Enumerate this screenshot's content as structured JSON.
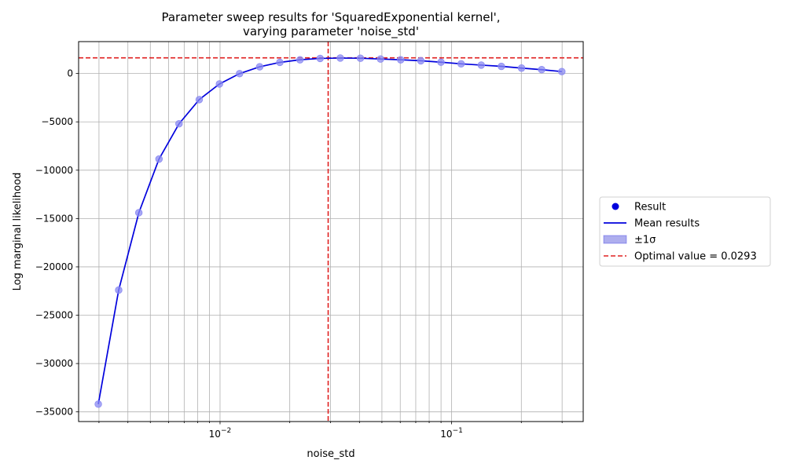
{
  "chart_data": {
    "type": "line",
    "title_line1": "Parameter sweep results for 'SquaredExponential kernel',",
    "title_line2": "varying parameter 'noise_std'",
    "xlabel": "noise_std",
    "ylabel": "Log marginal likelihood",
    "xscale": "log",
    "xlim": [
      0.00245,
      0.37
    ],
    "ylim": [
      -36000,
      3300
    ],
    "grid": true,
    "x": [
      0.00298,
      0.00365,
      0.00446,
      0.00545,
      0.00665,
      0.00813,
      0.00994,
      0.01214,
      0.01483,
      0.01812,
      0.02214,
      0.02705,
      0.03305,
      0.04037,
      0.04932,
      0.06026,
      0.07362,
      0.08994,
      0.10989,
      0.13425,
      0.16402,
      0.20038,
      0.24481,
      0.2991
    ],
    "y": [
      -34200,
      -22400,
      -14400,
      -8850,
      -5200,
      -2700,
      -1080,
      -10,
      700,
      1150,
      1420,
      1560,
      1600,
      1580,
      1500,
      1420,
      1320,
      1170,
      1000,
      870,
      740,
      560,
      400,
      200
    ],
    "optimal_x": 0.0293,
    "optimal_y": 1620,
    "y_ticks": [
      0,
      -5000,
      -10000,
      -15000,
      -20000,
      -25000,
      -30000,
      -35000
    ],
    "y_tick_labels": [
      "0",
      "−5000",
      "−10000",
      "−15000",
      "−20000",
      "−25000",
      "−30000",
      "−35000"
    ],
    "x_major_ticks": [
      {
        "value": 0.01,
        "base": "10",
        "exp": "−2"
      },
      {
        "value": 0.1,
        "base": "10",
        "exp": "−1"
      }
    ],
    "legend": {
      "placement": "right",
      "items": [
        {
          "kind": "marker",
          "label": "Result"
        },
        {
          "kind": "line",
          "label": "Mean results"
        },
        {
          "kind": "band",
          "label": "±1σ"
        },
        {
          "kind": "dashed",
          "label": "Optimal value = 0.0293"
        }
      ]
    },
    "colors": {
      "series": "#0000dd",
      "markers": "#8a8af2",
      "band": "#aeaeee",
      "optimal": "#e02020",
      "grid": "#b0b0b0"
    }
  }
}
